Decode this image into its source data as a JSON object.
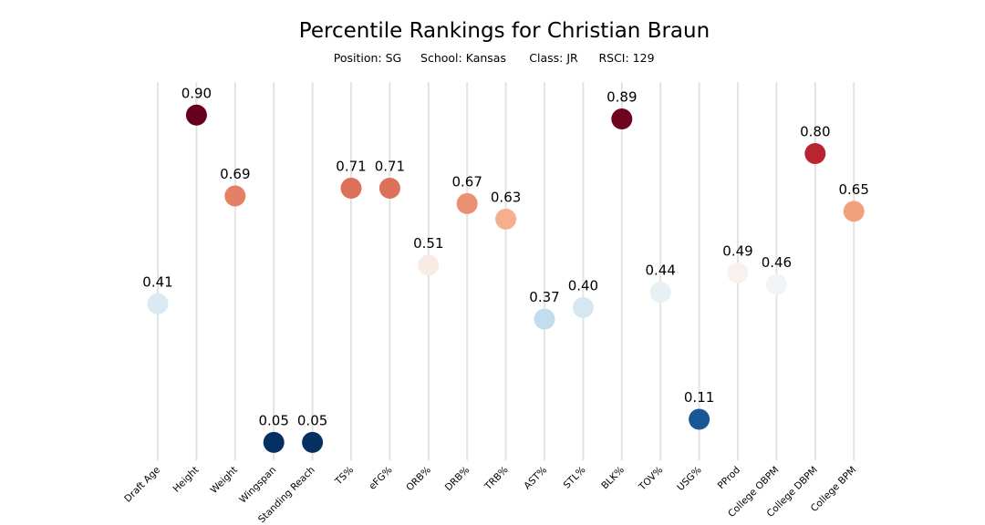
{
  "chart_data": {
    "type": "scatter",
    "title": "Percentile Rankings for Christian Braun",
    "subtitle": {
      "position": "Position: SG",
      "school": "School: Kansas",
      "class": "Class: JR",
      "rsci": "RSCI: 129"
    },
    "categories": [
      "Draft Age",
      "Height",
      "Weight",
      "Wingspan",
      "Standing Reach",
      "TS%",
      "eFG%",
      "ORB%",
      "DRB%",
      "TRB%",
      "AST%",
      "STL%",
      "BLK%",
      "TOV%",
      "USG%",
      "PProd",
      "College OBPM",
      "College DBPM",
      "College BPM"
    ],
    "values": [
      0.41,
      0.9,
      0.69,
      0.05,
      0.05,
      0.71,
      0.71,
      0.51,
      0.67,
      0.63,
      0.37,
      0.4,
      0.89,
      0.44,
      0.11,
      0.49,
      0.46,
      0.8,
      0.65
    ],
    "value_labels": [
      "0.41",
      "0.90",
      "0.69",
      "0.05",
      "0.05",
      "0.71",
      "0.71",
      "0.51",
      "0.67",
      "0.63",
      "0.37",
      "0.40",
      "0.89",
      "0.44",
      "0.11",
      "0.49",
      "0.46",
      "0.80",
      "0.65"
    ],
    "ylim": [
      0,
      1
    ],
    "colormap": "RdBu_r",
    "grid": "vertical lines per category",
    "legend": "none"
  }
}
